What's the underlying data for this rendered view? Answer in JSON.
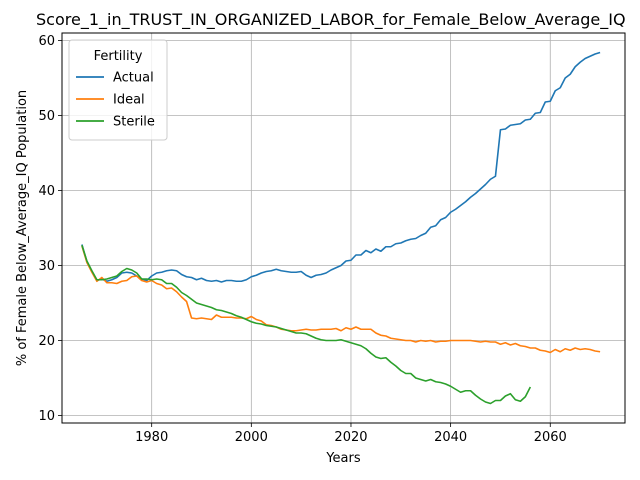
{
  "chart_data": {
    "type": "line",
    "title": "Score_1_in_TRUST_IN_ORGANIZED_LABOR_for_Female_Below_Average_IQ",
    "xlabel": "Years",
    "ylabel": "% of Female Below_Average_IQ Population",
    "xlim": [
      1962,
      2075
    ],
    "ylim": [
      9,
      61
    ],
    "xticks": [
      1980,
      2000,
      2020,
      2040,
      2060
    ],
    "yticks": [
      10,
      20,
      30,
      40,
      50,
      60
    ],
    "grid": true,
    "legend": {
      "title": "Fertility",
      "placement": "top-left"
    },
    "series": [
      {
        "name": "Actual",
        "color": "#1f77b4",
        "points": [
          [
            1966,
            32.8
          ],
          [
            1967,
            30.5
          ],
          [
            1968,
            29.2
          ],
          [
            1969,
            28.0
          ],
          [
            1970,
            28.2
          ],
          [
            1971,
            27.9
          ],
          [
            1972,
            28.1
          ],
          [
            1973,
            28.4
          ],
          [
            1974,
            29.0
          ],
          [
            1975,
            29.1
          ],
          [
            1976,
            29.0
          ],
          [
            1977,
            28.6
          ],
          [
            1978,
            28.2
          ],
          [
            1979,
            28.0
          ],
          [
            1980,
            28.6
          ],
          [
            1981,
            29.0
          ],
          [
            1982,
            29.1
          ],
          [
            1983,
            29.3
          ],
          [
            1984,
            29.4
          ],
          [
            1985,
            29.3
          ],
          [
            1986,
            28.8
          ],
          [
            1987,
            28.5
          ],
          [
            1988,
            28.4
          ],
          [
            1989,
            28.1
          ],
          [
            1990,
            28.3
          ],
          [
            1991,
            28.0
          ],
          [
            1992,
            27.9
          ],
          [
            1993,
            28.0
          ],
          [
            1994,
            27.8
          ],
          [
            1995,
            28.0
          ],
          [
            1996,
            28.0
          ],
          [
            1997,
            27.9
          ],
          [
            1998,
            27.9
          ],
          [
            1999,
            28.1
          ],
          [
            2000,
            28.5
          ],
          [
            2001,
            28.7
          ],
          [
            2002,
            29.0
          ],
          [
            2003,
            29.2
          ],
          [
            2004,
            29.3
          ],
          [
            2005,
            29.5
          ],
          [
            2006,
            29.3
          ],
          [
            2007,
            29.2
          ],
          [
            2008,
            29.1
          ],
          [
            2009,
            29.1
          ],
          [
            2010,
            29.2
          ],
          [
            2011,
            28.7
          ],
          [
            2012,
            28.4
          ],
          [
            2013,
            28.7
          ],
          [
            2014,
            28.8
          ],
          [
            2015,
            29.0
          ],
          [
            2016,
            29.4
          ],
          [
            2017,
            29.7
          ],
          [
            2018,
            30.0
          ],
          [
            2019,
            30.6
          ],
          [
            2020,
            30.7
          ],
          [
            2021,
            31.4
          ],
          [
            2022,
            31.4
          ],
          [
            2023,
            32.0
          ],
          [
            2024,
            31.7
          ],
          [
            2025,
            32.2
          ],
          [
            2026,
            31.9
          ],
          [
            2027,
            32.5
          ],
          [
            2028,
            32.5
          ],
          [
            2029,
            32.9
          ],
          [
            2030,
            33.0
          ],
          [
            2031,
            33.3
          ],
          [
            2032,
            33.5
          ],
          [
            2033,
            33.6
          ],
          [
            2034,
            34.0
          ],
          [
            2035,
            34.3
          ],
          [
            2036,
            35.1
          ],
          [
            2037,
            35.3
          ],
          [
            2038,
            36.1
          ],
          [
            2039,
            36.4
          ],
          [
            2040,
            37.1
          ],
          [
            2041,
            37.5
          ],
          [
            2042,
            38.0
          ],
          [
            2043,
            38.5
          ],
          [
            2044,
            39.1
          ],
          [
            2045,
            39.6
          ],
          [
            2046,
            40.2
          ],
          [
            2047,
            40.8
          ],
          [
            2048,
            41.5
          ],
          [
            2049,
            41.9
          ],
          [
            2050,
            48.1
          ],
          [
            2051,
            48.2
          ],
          [
            2052,
            48.7
          ],
          [
            2053,
            48.8
          ],
          [
            2054,
            48.9
          ],
          [
            2055,
            49.4
          ],
          [
            2056,
            49.5
          ],
          [
            2057,
            50.3
          ],
          [
            2058,
            50.4
          ],
          [
            2059,
            51.8
          ],
          [
            2060,
            51.9
          ],
          [
            2061,
            53.3
          ],
          [
            2062,
            53.7
          ],
          [
            2063,
            55.0
          ],
          [
            2064,
            55.5
          ],
          [
            2065,
            56.5
          ],
          [
            2066,
            57.1
          ],
          [
            2067,
            57.6
          ],
          [
            2068,
            57.9
          ],
          [
            2069,
            58.2
          ],
          [
            2070,
            58.4
          ]
        ]
      },
      {
        "name": "Ideal",
        "color": "#ff7f0e",
        "points": [
          [
            1966,
            32.6
          ],
          [
            1967,
            30.4
          ],
          [
            1968,
            29.1
          ],
          [
            1969,
            27.9
          ],
          [
            1970,
            28.4
          ],
          [
            1971,
            27.7
          ],
          [
            1972,
            27.7
          ],
          [
            1973,
            27.6
          ],
          [
            1974,
            27.9
          ],
          [
            1975,
            28.0
          ],
          [
            1976,
            28.5
          ],
          [
            1977,
            28.6
          ],
          [
            1978,
            28.0
          ],
          [
            1979,
            27.8
          ],
          [
            1980,
            28.0
          ],
          [
            1981,
            27.6
          ],
          [
            1982,
            27.4
          ],
          [
            1983,
            26.9
          ],
          [
            1984,
            27.0
          ],
          [
            1985,
            26.5
          ],
          [
            1986,
            25.8
          ],
          [
            1987,
            25.2
          ],
          [
            1988,
            23.0
          ],
          [
            1989,
            22.9
          ],
          [
            1990,
            23.0
          ],
          [
            1991,
            22.9
          ],
          [
            1992,
            22.8
          ],
          [
            1993,
            23.4
          ],
          [
            1994,
            23.1
          ],
          [
            1995,
            23.1
          ],
          [
            1996,
            23.1
          ],
          [
            1997,
            23.0
          ],
          [
            1998,
            23.0
          ],
          [
            1999,
            22.9
          ],
          [
            2000,
            23.2
          ],
          [
            2001,
            22.8
          ],
          [
            2002,
            22.6
          ],
          [
            2003,
            22.1
          ],
          [
            2004,
            22.0
          ],
          [
            2005,
            21.8
          ],
          [
            2006,
            21.5
          ],
          [
            2007,
            21.4
          ],
          [
            2008,
            21.3
          ],
          [
            2009,
            21.3
          ],
          [
            2010,
            21.4
          ],
          [
            2011,
            21.5
          ],
          [
            2012,
            21.4
          ],
          [
            2013,
            21.4
          ],
          [
            2014,
            21.5
          ],
          [
            2015,
            21.5
          ],
          [
            2016,
            21.5
          ],
          [
            2017,
            21.6
          ],
          [
            2018,
            21.3
          ],
          [
            2019,
            21.7
          ],
          [
            2020,
            21.5
          ],
          [
            2021,
            21.8
          ],
          [
            2022,
            21.5
          ],
          [
            2023,
            21.5
          ],
          [
            2024,
            21.5
          ],
          [
            2025,
            21.0
          ],
          [
            2026,
            20.7
          ],
          [
            2027,
            20.6
          ],
          [
            2028,
            20.3
          ],
          [
            2029,
            20.2
          ],
          [
            2030,
            20.1
          ],
          [
            2031,
            20.0
          ],
          [
            2032,
            20.0
          ],
          [
            2033,
            19.8
          ],
          [
            2034,
            20.0
          ],
          [
            2035,
            19.9
          ],
          [
            2036,
            20.0
          ],
          [
            2037,
            19.8
          ],
          [
            2038,
            19.9
          ],
          [
            2039,
            19.9
          ],
          [
            2040,
            20.0
          ],
          [
            2041,
            20.0
          ],
          [
            2042,
            20.0
          ],
          [
            2043,
            20.0
          ],
          [
            2044,
            20.0
          ],
          [
            2045,
            19.9
          ],
          [
            2046,
            19.8
          ],
          [
            2047,
            19.9
          ],
          [
            2048,
            19.8
          ],
          [
            2049,
            19.8
          ],
          [
            2050,
            19.5
          ],
          [
            2051,
            19.7
          ],
          [
            2052,
            19.4
          ],
          [
            2053,
            19.6
          ],
          [
            2054,
            19.3
          ],
          [
            2055,
            19.2
          ],
          [
            2056,
            19.0
          ],
          [
            2057,
            19.0
          ],
          [
            2058,
            18.7
          ],
          [
            2059,
            18.6
          ],
          [
            2060,
            18.4
          ],
          [
            2061,
            18.8
          ],
          [
            2062,
            18.5
          ],
          [
            2063,
            18.9
          ],
          [
            2064,
            18.7
          ],
          [
            2065,
            19.0
          ],
          [
            2066,
            18.8
          ],
          [
            2067,
            18.9
          ],
          [
            2068,
            18.8
          ],
          [
            2069,
            18.6
          ],
          [
            2070,
            18.5
          ]
        ]
      },
      {
        "name": "Sterile",
        "color": "#2ca02c",
        "points": [
          [
            1966,
            32.7
          ],
          [
            1967,
            30.6
          ],
          [
            1968,
            29.3
          ],
          [
            1969,
            28.1
          ],
          [
            1970,
            28.1
          ],
          [
            1971,
            28.2
          ],
          [
            1972,
            28.4
          ],
          [
            1973,
            28.6
          ],
          [
            1974,
            29.2
          ],
          [
            1975,
            29.6
          ],
          [
            1976,
            29.4
          ],
          [
            1977,
            29.0
          ],
          [
            1978,
            28.2
          ],
          [
            1979,
            28.2
          ],
          [
            1980,
            28.1
          ],
          [
            1981,
            28.2
          ],
          [
            1982,
            28.1
          ],
          [
            1983,
            27.6
          ],
          [
            1984,
            27.6
          ],
          [
            1985,
            27.1
          ],
          [
            1986,
            26.4
          ],
          [
            1987,
            26.0
          ],
          [
            1988,
            25.5
          ],
          [
            1989,
            25.0
          ],
          [
            1990,
            24.8
          ],
          [
            1991,
            24.6
          ],
          [
            1992,
            24.4
          ],
          [
            1993,
            24.1
          ],
          [
            1994,
            24.0
          ],
          [
            1995,
            23.8
          ],
          [
            1996,
            23.6
          ],
          [
            1997,
            23.3
          ],
          [
            1998,
            23.1
          ],
          [
            1999,
            22.8
          ],
          [
            2000,
            22.5
          ],
          [
            2001,
            22.3
          ],
          [
            2002,
            22.2
          ],
          [
            2003,
            22.0
          ],
          [
            2004,
            21.9
          ],
          [
            2005,
            21.8
          ],
          [
            2006,
            21.6
          ],
          [
            2007,
            21.4
          ],
          [
            2008,
            21.2
          ],
          [
            2009,
            21.0
          ],
          [
            2010,
            21.0
          ],
          [
            2011,
            20.9
          ],
          [
            2012,
            20.6
          ],
          [
            2013,
            20.3
          ],
          [
            2014,
            20.1
          ],
          [
            2015,
            20.0
          ],
          [
            2016,
            20.0
          ],
          [
            2017,
            20.0
          ],
          [
            2018,
            20.1
          ],
          [
            2019,
            19.9
          ],
          [
            2020,
            19.7
          ],
          [
            2021,
            19.5
          ],
          [
            2022,
            19.3
          ],
          [
            2023,
            18.9
          ],
          [
            2024,
            18.3
          ],
          [
            2025,
            17.8
          ],
          [
            2026,
            17.6
          ],
          [
            2027,
            17.7
          ],
          [
            2028,
            17.1
          ],
          [
            2029,
            16.6
          ],
          [
            2030,
            16.0
          ],
          [
            2031,
            15.6
          ],
          [
            2032,
            15.6
          ],
          [
            2033,
            15.0
          ],
          [
            2034,
            14.8
          ],
          [
            2035,
            14.6
          ],
          [
            2036,
            14.8
          ],
          [
            2037,
            14.5
          ],
          [
            2038,
            14.4
          ],
          [
            2039,
            14.2
          ],
          [
            2040,
            13.9
          ],
          [
            2041,
            13.5
          ],
          [
            2042,
            13.1
          ],
          [
            2043,
            13.3
          ],
          [
            2044,
            13.3
          ],
          [
            2045,
            12.7
          ],
          [
            2046,
            12.2
          ],
          [
            2047,
            11.8
          ],
          [
            2048,
            11.6
          ],
          [
            2049,
            12.0
          ],
          [
            2050,
            12.0
          ],
          [
            2051,
            12.6
          ],
          [
            2052,
            12.9
          ],
          [
            2053,
            12.1
          ],
          [
            2054,
            11.9
          ],
          [
            2055,
            12.5
          ],
          [
            2056,
            13.8
          ]
        ]
      }
    ]
  }
}
